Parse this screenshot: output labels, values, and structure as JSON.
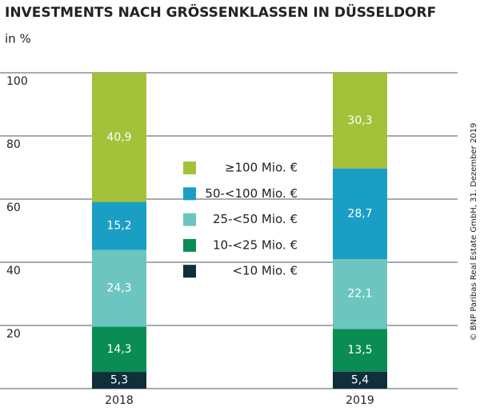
{
  "chart_data": {
    "type": "stacked-bar",
    "title": "INVESTMENTS NACH GRÖSSENKLASSEN IN DÜSSELDORF",
    "y_label": "in %",
    "source": "© BNP Paribas Real Estate GmbH, 31. Dezember 2019",
    "categories": [
      "2018",
      "2019"
    ],
    "series": [
      {
        "name": "<10 Mio. €",
        "color": "#0f2f3a",
        "values": [
          5.3,
          5.4
        ],
        "value_labels": [
          "5,3",
          "5,4"
        ]
      },
      {
        "name": "10-<25 Mio. €",
        "color": "#0a8c55",
        "values": [
          14.3,
          13.5
        ],
        "value_labels": [
          "14,3",
          "13,5"
        ]
      },
      {
        "name": "25-<50 Mio. €",
        "color": "#6cc6bf",
        "values": [
          24.3,
          22.1
        ],
        "value_labels": [
          "24,3",
          "22,1"
        ]
      },
      {
        "name": "50-<100 Mio. €",
        "color": "#1a9ec4",
        "values": [
          15.2,
          28.7
        ],
        "value_labels": [
          "15,2",
          "28,7"
        ]
      },
      {
        "name": "≥100 Mio. €",
        "color": "#a3c23a",
        "values": [
          40.9,
          30.3
        ],
        "value_labels": [
          "40,9",
          "30,3"
        ]
      }
    ],
    "ylim": [
      0,
      100
    ],
    "yticks": [
      20,
      40,
      60,
      80,
      100
    ],
    "grid": true
  }
}
